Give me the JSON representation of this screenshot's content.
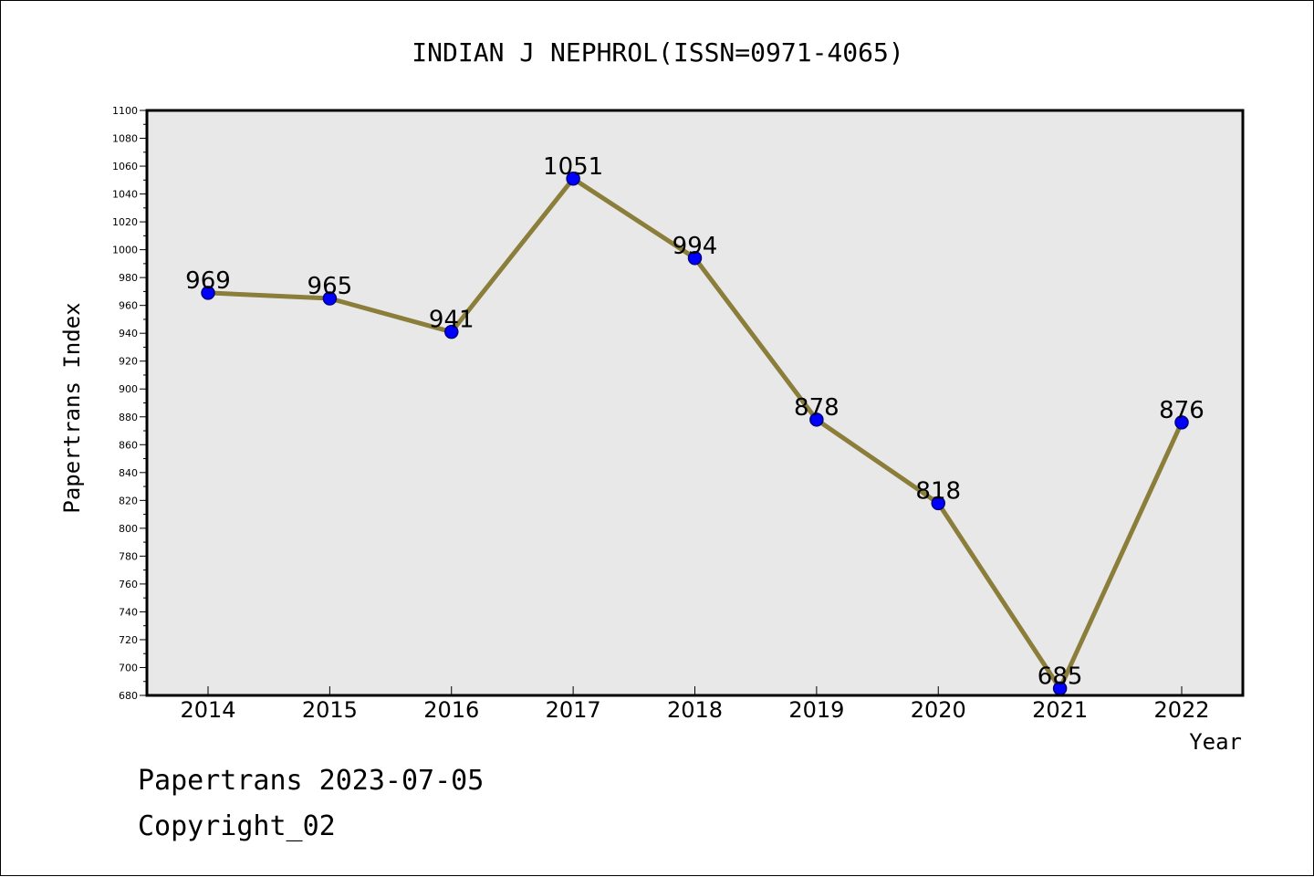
{
  "chart_data": {
    "type": "line",
    "title": "INDIAN J NEPHROL(ISSN=0971-4065)",
    "xlabel": "Year",
    "ylabel": "Papertrans Index",
    "categories": [
      "2014",
      "2015",
      "2016",
      "2017",
      "2018",
      "2019",
      "2020",
      "2021",
      "2022"
    ],
    "series": [
      {
        "values": [
          969,
          965,
          941,
          1051,
          994,
          878,
          818,
          685,
          876
        ]
      }
    ],
    "ylim": [
      680,
      1100
    ],
    "yticks": [
      "680",
      "700",
      "720",
      "740",
      "760",
      "780",
      "800",
      "820",
      "840",
      "860",
      "880",
      "900",
      "920",
      "940",
      "960",
      "980",
      "1000",
      "1020",
      "1040",
      "1060",
      "1080",
      "1100"
    ],
    "data_labels": [
      "969",
      "965",
      "941",
      "1051",
      "994",
      "878",
      "818",
      "685",
      "876"
    ],
    "grid": false,
    "colors": {
      "plot_background": "#e8e8e8",
      "line": "#8b7d3a",
      "marker_fill": "#0000ff",
      "marker_stroke": "#000080"
    }
  },
  "footer": {
    "line1": "Papertrans 2023-07-05",
    "line2": "Copyright_02"
  }
}
